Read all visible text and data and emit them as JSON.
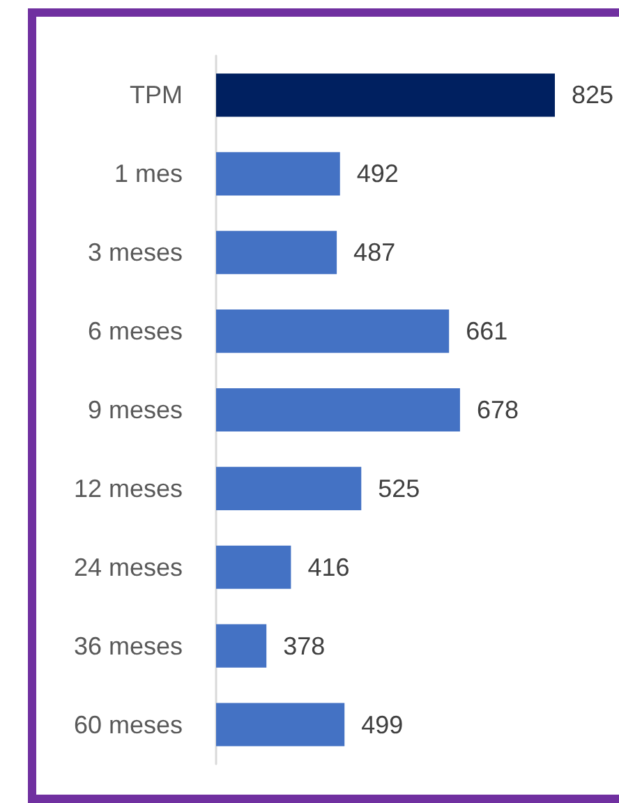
{
  "chart_data": {
    "type": "bar",
    "orientation": "horizontal",
    "categories": [
      "TPM",
      "1 mes",
      "3 meses",
      "6 meses",
      "9 meses",
      "12 meses",
      "24 meses",
      "36 meses",
      "60 meses"
    ],
    "values": [
      825,
      492,
      487,
      661,
      678,
      525,
      416,
      378,
      499
    ],
    "colors": [
      "#002060",
      "#4472c4",
      "#4472c4",
      "#4472c4",
      "#4472c4",
      "#4472c4",
      "#4472c4",
      "#4472c4",
      "#4472c4"
    ],
    "xlim": [
      300,
      825
    ],
    "data_labels": true,
    "tick_labels": "y"
  }
}
